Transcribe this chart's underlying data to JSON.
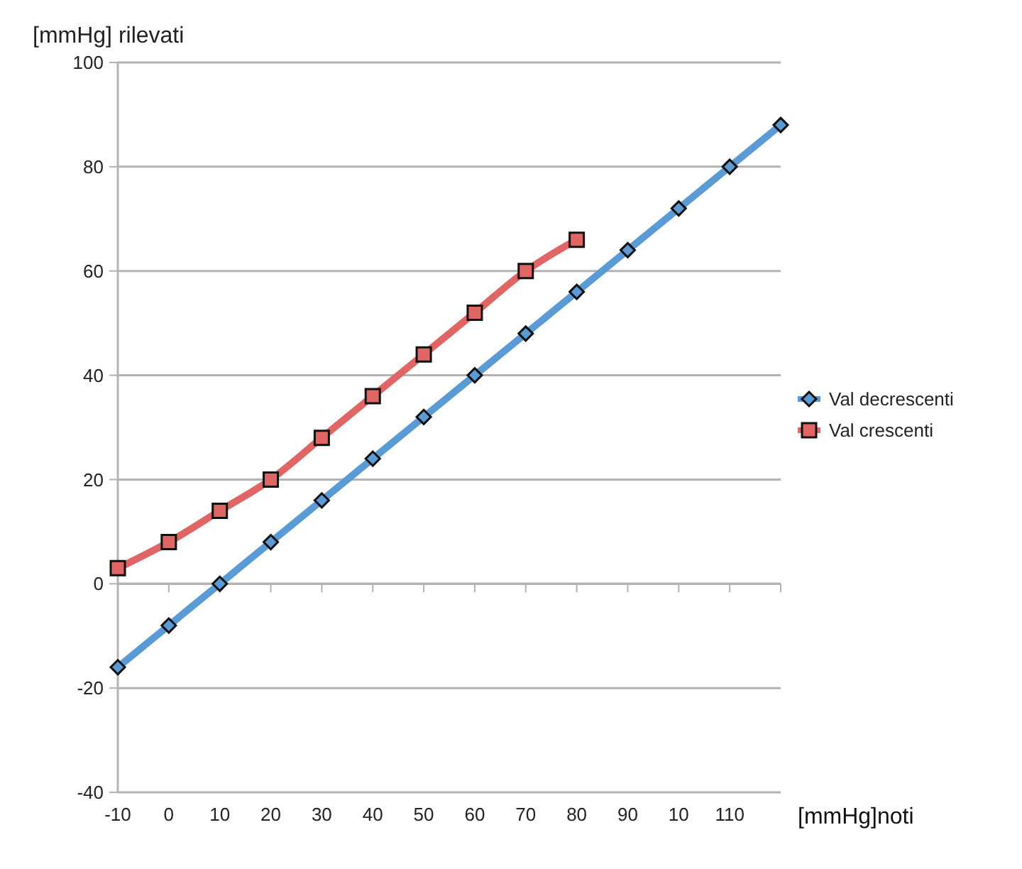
{
  "chart_data": {
    "type": "line",
    "ylabel": "[mmHg] rilevati",
    "xlabel": "[mmHg]noti",
    "categories": [
      "-10",
      "0",
      "10",
      "20",
      "30",
      "40",
      "50",
      "60",
      "70",
      "80",
      "90",
      "10",
      "110",
      null
    ],
    "series": [
      {
        "name": "Val decrescenti",
        "color": "#5b9bd5",
        "marker": "diamond",
        "values": [
          -16,
          -8,
          0,
          8,
          16,
          24,
          32,
          40,
          48,
          56,
          64,
          72,
          80,
          88
        ]
      },
      {
        "name": "Val crescenti",
        "color": "#e06666",
        "marker": "square",
        "values": [
          3,
          8,
          14,
          20,
          28,
          36,
          44,
          52,
          60,
          66,
          null,
          null,
          null,
          null
        ]
      }
    ],
    "ylim": [
      -40,
      100
    ],
    "yticks": [
      -40,
      -20,
      0,
      20,
      40,
      60,
      80,
      100
    ],
    "grid": "y",
    "legend": "right"
  }
}
